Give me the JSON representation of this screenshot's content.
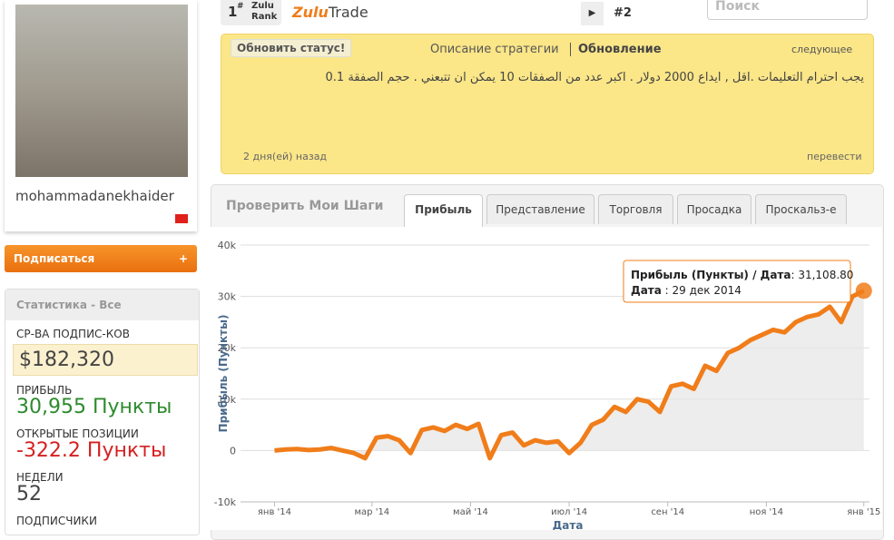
{
  "rank": {
    "number": "1",
    "sup": "#",
    "label1": "Zulu",
    "label2": "Rank"
  },
  "logo": {
    "part1": "Zulu",
    "part2": "Trade"
  },
  "next_rank": "#2",
  "search": "Поиск",
  "profile": {
    "username": "mohammadanekhaider",
    "subscribe": "Подписаться",
    "plus": "+"
  },
  "stats": {
    "title": "Статистика - Все",
    "items": [
      {
        "label": "СР-ВА ПОДПИС-КОВ",
        "value": "$182,320"
      },
      {
        "label": "ПРИБЫЛЬ",
        "value": "30,955 Пункты"
      },
      {
        "label": "ОТКРЫТЫЕ ПОЗИЦИИ",
        "value": "-322.2 Пункты"
      },
      {
        "label": "НЕДЕЛИ",
        "value": "52"
      },
      {
        "label": "ПОДПИСЧИКИ"
      }
    ]
  },
  "status": {
    "button": "Обновить статус!",
    "tab1": "Описание стратегии",
    "tab2": "Обновление",
    "next": "следующее",
    "text": "يجب احترام التعليمات .اقل , ايداع 2000 دولار . اكبر عدد من الصفقات 10 يمكن ان تتبعني . حجم الصفقة 0.1",
    "time": "2 дня(ей) назад",
    "translate": "перевести"
  },
  "panel": {
    "title": "Проверить Мои Шаги",
    "tabs": [
      "Прибыль",
      "Представление",
      "Торговля",
      "Просадка",
      "Проскальз-е"
    ]
  },
  "chart_data": {
    "type": "line",
    "x_label": "Дата",
    "y_label": "Прибыль (Пункты)",
    "series": [
      {
        "name": "Прибыль (Пункты)",
        "color": "#f07d1a",
        "values": [
          0,
          200,
          300,
          100,
          200,
          500,
          0,
          -500,
          -1500,
          2500,
          2800,
          2000,
          -500,
          4000,
          4500,
          3800,
          5000,
          4200,
          5200,
          -1500,
          3000,
          3500,
          1000,
          2000,
          1500,
          1800,
          -500,
          1500,
          5000,
          6000,
          8500,
          7500,
          10000,
          9500,
          7500,
          12500,
          13000,
          12000,
          16500,
          15500,
          19000,
          20000,
          21500,
          22500,
          23500,
          23000,
          25000,
          26000,
          26500,
          28000,
          25000,
          30000,
          31108.8
        ]
      }
    ],
    "xlim": [
      -3,
      52.5
    ],
    "xticks": [
      {
        "value": 0,
        "label": "янв '14"
      },
      {
        "value": 8.6,
        "label": "мар '14"
      },
      {
        "value": 17.3,
        "label": "май '14"
      },
      {
        "value": 26,
        "label": "июл '14"
      },
      {
        "value": 34.7,
        "label": "сен '14"
      },
      {
        "value": 43.4,
        "label": "ноя '14"
      },
      {
        "value": 52,
        "label": "янв '15"
      }
    ],
    "ylim": [
      -10000,
      40000
    ],
    "yticks": [
      {
        "value": -10000,
        "label": "-10k"
      },
      0,
      {
        "value": 10000,
        "label": "10k"
      },
      {
        "value": 20000,
        "label": "20k"
      },
      {
        "value": 30000,
        "label": "30k"
      },
      {
        "value": 40000,
        "label": "40k"
      }
    ],
    "grid": true,
    "tooltip": {
      "line1_label": "Прибыль (Пункты) / Дата",
      "line1_value": ": 31,108.80",
      "line2_label": "Дата",
      "line2_value": " : 29 дек 2014"
    }
  }
}
